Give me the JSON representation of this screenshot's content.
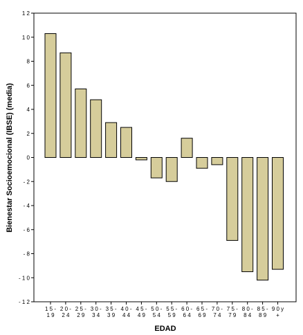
{
  "chart_data": {
    "type": "bar",
    "xlabel": "EDAD",
    "ylabel": "Bienestar Socioemocional   (IBSE)  (media)",
    "ylim": [
      -12,
      12
    ],
    "yticks": [
      12,
      10,
      8,
      6,
      4,
      2,
      0,
      -2,
      -4,
      -6,
      -8,
      -10,
      -12
    ],
    "ytick_labels": [
      "1 2",
      "1 0",
      "8",
      "6",
      "4",
      "2",
      "0",
      "- 2",
      "- 4",
      "- 6",
      "- 8",
      "- 1 0",
      "- 1 2"
    ],
    "categories": [
      [
        "1 5 -",
        "1 9"
      ],
      [
        "2 0 -",
        "2 4"
      ],
      [
        "2 5 -",
        "2 9"
      ],
      [
        "3 0 -",
        "3 4"
      ],
      [
        "3 5 -",
        "3 9"
      ],
      [
        "4 0 -",
        "4 4"
      ],
      [
        "4 5 -",
        "4 9"
      ],
      [
        "5 0 -",
        "5 4"
      ],
      [
        "5 5 -",
        "5 9"
      ],
      [
        "6 0 -",
        "6 4"
      ],
      [
        "6 5 -",
        "6 9"
      ],
      [
        "7 0 -",
        "7 4"
      ],
      [
        "7 5 -",
        "7 9"
      ],
      [
        "8 0 -",
        "8 4"
      ],
      [
        "8 5 -",
        "8 9"
      ],
      [
        "9 0  y",
        "+"
      ]
    ],
    "values": [
      10.3,
      8.7,
      5.7,
      4.8,
      2.9,
      2.5,
      -0.2,
      -1.7,
      -2.0,
      1.6,
      -0.9,
      -0.6,
      -6.9,
      -9.5,
      -10.2,
      -9.3
    ],
    "bar_color": "#d6cd9b",
    "bar_stroke": "#000000",
    "grid": false
  }
}
